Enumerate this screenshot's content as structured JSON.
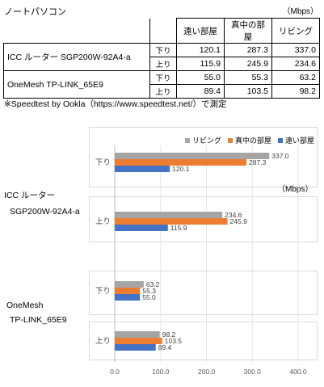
{
  "sheet": {
    "title": "ノートパソコン",
    "unit": "（Mbps）",
    "columns": [
      "遠い部屋",
      "真中の部屋",
      "リビング"
    ],
    "rows": [
      {
        "device": "ICC ルーター  SGP200W-92A4-a",
        "dir": "下り",
        "values": [
          "120.1",
          "287.3",
          "337.0"
        ]
      },
      {
        "device": "",
        "dir": "上り",
        "values": [
          "115.9",
          "245.9",
          "234.6"
        ]
      },
      {
        "device": "OneMesh TP-LINK_65E9",
        "dir": "下り",
        "values": [
          "55.0",
          "55.3",
          "63.2"
        ]
      },
      {
        "device": "",
        "dir": "上り",
        "values": [
          "89.4",
          "103.5",
          "98.2"
        ]
      }
    ],
    "note": "※Speedtest by Ookla（https://www.speedtest.net/）で測定"
  },
  "chart_data": {
    "type": "bar",
    "orientation": "horizontal",
    "unit_label": "（Mbps）",
    "legend": [
      "リビング",
      "真中の部屋",
      "遠い部屋"
    ],
    "legend_placement": "top-right",
    "xlim": [
      0,
      400
    ],
    "x_ticks": [
      "0.0",
      "100.0",
      "200.0",
      "300.0",
      "400.0"
    ],
    "colors": {
      "リビング": "#a5a5a5",
      "真中の部屋": "#ed7d31",
      "遠い部屋": "#4472c4"
    },
    "groups": [
      {
        "label_line1": "ICC ルーター",
        "label_line2": "SGP200W-92A4-a",
        "categories": [
          {
            "label": "下り",
            "values": {
              "リビング": 337.0,
              "真中の部屋": 287.3,
              "遠い部屋": 120.1
            }
          },
          {
            "label": "上り",
            "values": {
              "リビング": 234.6,
              "真中の部屋": 245.9,
              "遠い部屋": 115.9
            }
          }
        ]
      },
      {
        "label_line1": "OneMesh",
        "label_line2": "TP-LINK_65E9",
        "categories": [
          {
            "label": "下り",
            "values": {
              "リビング": 63.2,
              "真中の部屋": 55.3,
              "遠い部屋": 55.0
            }
          },
          {
            "label": "上り",
            "values": {
              "リビング": 98.2,
              "真中の部屋": 103.5,
              "遠い部屋": 89.4
            }
          }
        ]
      }
    ]
  }
}
